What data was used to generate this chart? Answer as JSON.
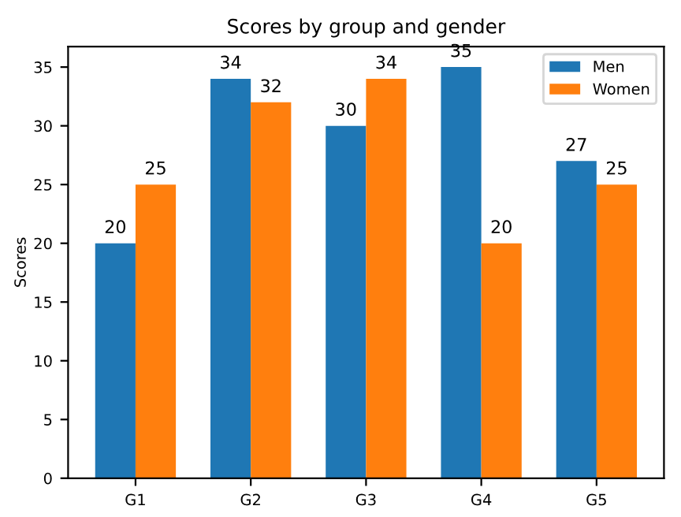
{
  "chart_data": {
    "type": "bar",
    "title": "Scores by group and gender",
    "ylabel": "Scores",
    "categories": [
      "G1",
      "G2",
      "G3",
      "G4",
      "G5"
    ],
    "series": [
      {
        "name": "Men",
        "color": "#1f77b4",
        "values": [
          20,
          34,
          30,
          35,
          27
        ]
      },
      {
        "name": "Women",
        "color": "#ff7f0e",
        "values": [
          25,
          32,
          34,
          20,
          25
        ]
      }
    ],
    "ylim": [
      0,
      36.75
    ],
    "yticks": [
      0,
      5,
      10,
      15,
      20,
      25,
      30,
      35
    ],
    "data_labels": true,
    "legend": "top right",
    "grid": false
  }
}
